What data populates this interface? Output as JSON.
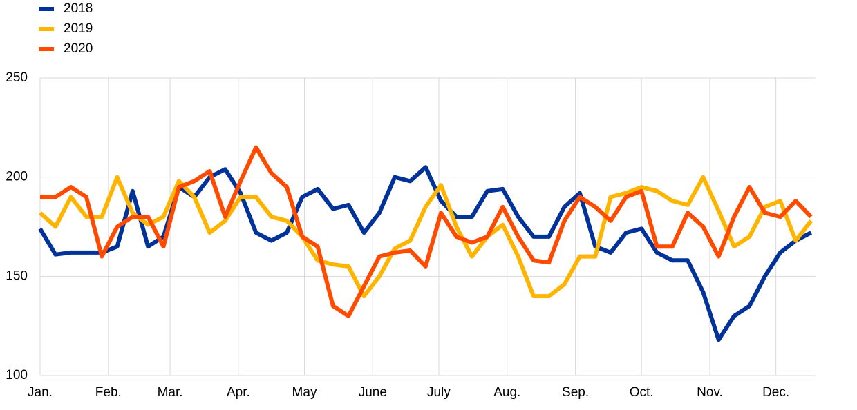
{
  "chart_data": {
    "type": "line",
    "x": [
      0,
      7,
      14,
      21,
      28,
      35,
      42,
      49,
      56,
      63,
      70,
      77,
      84,
      91,
      98,
      105,
      112,
      119,
      126,
      133,
      140,
      147,
      154,
      161,
      168,
      175,
      182,
      189,
      196,
      203,
      210,
      217,
      224,
      231,
      238,
      245,
      252,
      259,
      266,
      273,
      280,
      287,
      294,
      301,
      308,
      315,
      322,
      329,
      336,
      343,
      350
    ],
    "series": [
      {
        "name": "2018",
        "color": "#003299",
        "values": [
          174,
          161,
          162,
          162,
          162,
          165,
          193,
          165,
          170,
          195,
          190,
          200,
          204,
          192,
          172,
          168,
          172,
          190,
          194,
          184,
          186,
          172,
          182,
          200,
          198,
          205,
          188,
          180,
          180,
          193,
          194,
          180,
          170,
          170,
          185,
          192,
          165,
          162,
          172,
          174,
          162,
          158,
          158,
          142,
          118,
          130,
          135,
          150,
          162,
          168,
          172
        ]
      },
      {
        "name": "2019",
        "color": "#ffb400",
        "values": [
          182,
          175,
          190,
          180,
          180,
          200,
          182,
          176,
          180,
          198,
          190,
          172,
          178,
          190,
          190,
          180,
          178,
          170,
          158,
          156,
          155,
          140,
          150,
          164,
          168,
          185,
          196,
          175,
          160,
          170,
          176,
          160,
          140,
          140,
          146,
          160,
          160,
          190,
          192,
          195,
          193,
          188,
          186,
          200,
          183,
          165,
          170,
          185,
          188,
          168,
          178
        ]
      },
      {
        "name": "2020",
        "color": "#ff4b00",
        "values": [
          190,
          190,
          195,
          190,
          160,
          175,
          180,
          180,
          165,
          195,
          198,
          203,
          180,
          198,
          215,
          202,
          195,
          170,
          165,
          135,
          130,
          145,
          160,
          162,
          163,
          155,
          182,
          170,
          167,
          170,
          185,
          170,
          158,
          157,
          178,
          190,
          185,
          178,
          190,
          193,
          165,
          165,
          182,
          175,
          160,
          180,
          195,
          182,
          180,
          188,
          180
        ]
      }
    ],
    "xlim": [
      0,
      352
    ],
    "xticks": [
      {
        "value": 0,
        "label": "Jan."
      },
      {
        "value": 31,
        "label": "Feb."
      },
      {
        "value": 59,
        "label": "Mar."
      },
      {
        "value": 90,
        "label": "Apr."
      },
      {
        "value": 120,
        "label": "May"
      },
      {
        "value": 151,
        "label": "June"
      },
      {
        "value": 181,
        "label": "July"
      },
      {
        "value": 212,
        "label": "Aug."
      },
      {
        "value": 243,
        "label": "Sep."
      },
      {
        "value": 273,
        "label": "Oct."
      },
      {
        "value": 304,
        "label": "Nov."
      },
      {
        "value": 334,
        "label": "Dec."
      }
    ],
    "ylim": [
      100,
      250
    ],
    "yticks": [
      100,
      150,
      200,
      250
    ],
    "grid": true,
    "legend": "top-left"
  }
}
